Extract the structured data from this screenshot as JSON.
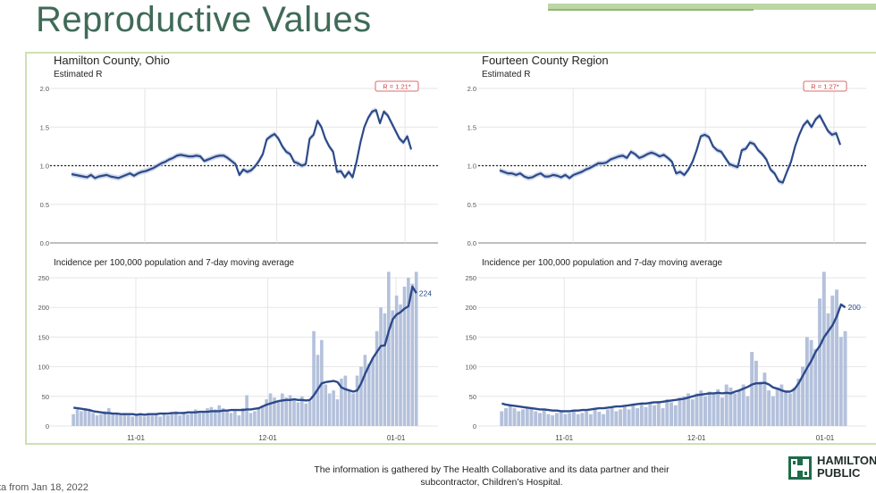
{
  "slide_title": "Reproductive Values",
  "footer_text": "The information is gathered by The Health Collaborative and its data partner and their subcontractor, Children’s Hospital.",
  "cut_note": "ta from Jan 18, 2022",
  "logo": {
    "line1": "HAMILTON",
    "line2": "PUBLIC"
  },
  "colors": {
    "line": "#2c4a8a",
    "band": "#c5cfe6",
    "bar": "#b4c1dc",
    "title": "#3f6b57",
    "grid": "#e6e6e6",
    "badge": "#d04040"
  },
  "chart_data": [
    {
      "type": "line",
      "title": "Hamilton County, Ohio",
      "ylabel": "Estimated R",
      "ylim": [
        0,
        2.0
      ],
      "yticks": [
        "0.0",
        "0.5",
        "1.0",
        "1.5",
        "2.0"
      ],
      "reference_line": 1.0,
      "badge": "R = 1.21*",
      "values": [
        0.89,
        0.88,
        0.87,
        0.86,
        0.85,
        0.88,
        0.84,
        0.86,
        0.87,
        0.88,
        0.86,
        0.85,
        0.84,
        0.86,
        0.88,
        0.9,
        0.87,
        0.9,
        0.92,
        0.93,
        0.95,
        0.97,
        1.0,
        1.03,
        1.05,
        1.08,
        1.1,
        1.13,
        1.14,
        1.13,
        1.12,
        1.12,
        1.13,
        1.12,
        1.06,
        1.08,
        1.1,
        1.12,
        1.13,
        1.13,
        1.1,
        1.06,
        1.02,
        0.88,
        0.95,
        0.92,
        0.94,
        0.99,
        1.06,
        1.15,
        1.34,
        1.38,
        1.41,
        1.35,
        1.25,
        1.18,
        1.15,
        1.05,
        1.03,
        1.0,
        1.02,
        1.35,
        1.4,
        1.58,
        1.5,
        1.35,
        1.25,
        1.18,
        0.92,
        0.93,
        0.85,
        0.92,
        0.85,
        1.05,
        1.3,
        1.5,
        1.62,
        1.7,
        1.72,
        1.55,
        1.7,
        1.65,
        1.55,
        1.45,
        1.35,
        1.3,
        1.38,
        1.21
      ]
    },
    {
      "type": "line",
      "title": "Fourteen County Region",
      "ylabel": "Estimated R",
      "ylim": [
        0,
        2.0
      ],
      "yticks": [
        "0.0",
        "0.5",
        "1.0",
        "1.5",
        "2.0"
      ],
      "reference_line": 1.0,
      "badge": "R = 1.27*",
      "values": [
        0.94,
        0.92,
        0.9,
        0.9,
        0.88,
        0.9,
        0.86,
        0.84,
        0.85,
        0.88,
        0.9,
        0.86,
        0.86,
        0.88,
        0.87,
        0.85,
        0.88,
        0.84,
        0.88,
        0.9,
        0.92,
        0.95,
        0.97,
        1.0,
        1.03,
        1.03,
        1.04,
        1.08,
        1.1,
        1.12,
        1.13,
        1.1,
        1.18,
        1.15,
        1.1,
        1.12,
        1.15,
        1.17,
        1.15,
        1.12,
        1.14,
        1.1,
        1.05,
        0.9,
        0.92,
        0.88,
        0.95,
        1.05,
        1.2,
        1.38,
        1.4,
        1.37,
        1.25,
        1.2,
        1.18,
        1.1,
        1.02,
        1.0,
        0.98,
        1.2,
        1.22,
        1.3,
        1.28,
        1.2,
        1.15,
        1.08,
        0.95,
        0.9,
        0.8,
        0.78,
        0.92,
        1.05,
        1.25,
        1.4,
        1.52,
        1.58,
        1.5,
        1.6,
        1.65,
        1.55,
        1.45,
        1.4,
        1.42,
        1.27
      ]
    },
    {
      "type": "bar",
      "title": "Incidence per 100,000 population and 7-day moving average",
      "ylim": [
        0,
        250
      ],
      "yticks": [
        "0",
        "50",
        "100",
        "150",
        "200",
        "250"
      ],
      "xticks": [
        {
          "label": "11-01",
          "pos": 0.2
        },
        {
          "label": "12-01",
          "pos": 0.56
        },
        {
          "label": "01-01",
          "pos": 0.91
        }
      ],
      "end_label": "224",
      "values": [
        20,
        28,
        25,
        30,
        28,
        22,
        18,
        20,
        25,
        30,
        22,
        20,
        18,
        22,
        18,
        16,
        20,
        18,
        16,
        20,
        18,
        22,
        16,
        20,
        18,
        22,
        25,
        18,
        24,
        20,
        22,
        28,
        22,
        24,
        30,
        32,
        28,
        35,
        30,
        26,
        22,
        25,
        18,
        30,
        52,
        22,
        25,
        30,
        35,
        45,
        55,
        48,
        42,
        55,
        48,
        52,
        45,
        40,
        50,
        38,
        42,
        160,
        120,
        145,
        70,
        55,
        60,
        45,
        80,
        85,
        60,
        55,
        85,
        100,
        120,
        105,
        115,
        160,
        200,
        190,
        260,
        195,
        220,
        205,
        235,
        250,
        240,
        260
      ],
      "moving_average": [
        31,
        30,
        29,
        28,
        27,
        25,
        24,
        23,
        22,
        22,
        21,
        21,
        20,
        20,
        20,
        20,
        19,
        20,
        19,
        20,
        20,
        20,
        21,
        21,
        21,
        22,
        22,
        22,
        22,
        23,
        23,
        23,
        24,
        24,
        24,
        25,
        25,
        25,
        26,
        26,
        27,
        27,
        27,
        27,
        28,
        28,
        29,
        30,
        33,
        36,
        38,
        40,
        42,
        43,
        44,
        44,
        45,
        44,
        44,
        43,
        44,
        52,
        62,
        72,
        74,
        75,
        76,
        74,
        65,
        62,
        60,
        58,
        60,
        72,
        88,
        102,
        115,
        125,
        135,
        136,
        160,
        180,
        188,
        192,
        198,
        202,
        235,
        224
      ]
    },
    {
      "type": "bar",
      "title": "Incidence per 100,000 population and 7-day moving average",
      "ylim": [
        0,
        250
      ],
      "yticks": [
        "0",
        "50",
        "100",
        "150",
        "200",
        "250"
      ],
      "xticks": [
        {
          "label": "11-01",
          "pos": 0.2
        },
        {
          "label": "12-01",
          "pos": 0.56
        },
        {
          "label": "01-01",
          "pos": 0.91
        }
      ],
      "end_label": "200",
      "values": [
        25,
        30,
        35,
        30,
        25,
        28,
        32,
        30,
        25,
        22,
        28,
        20,
        18,
        22,
        24,
        20,
        22,
        25,
        20,
        22,
        25,
        20,
        28,
        24,
        20,
        28,
        30,
        25,
        28,
        32,
        28,
        35,
        30,
        38,
        32,
        40,
        35,
        42,
        30,
        45,
        40,
        35,
        48,
        50,
        55,
        45,
        55,
        60,
        50,
        58,
        55,
        62,
        48,
        70,
        65,
        55,
        60,
        70,
        50,
        125,
        110,
        75,
        90,
        60,
        50,
        65,
        70,
        60,
        55,
        65,
        80,
        100,
        150,
        145,
        130,
        215,
        260,
        190,
        220,
        230,
        150,
        160
      ],
      "moving_average": [
        38,
        36,
        35,
        34,
        33,
        32,
        31,
        30,
        29,
        28,
        28,
        27,
        26,
        26,
        25,
        25,
        25,
        26,
        26,
        27,
        27,
        28,
        29,
        30,
        30,
        31,
        32,
        33,
        33,
        34,
        35,
        36,
        37,
        38,
        38,
        39,
        40,
        40,
        41,
        42,
        43,
        44,
        45,
        46,
        48,
        50,
        52,
        53,
        54,
        55,
        55,
        56,
        55,
        56,
        55,
        58,
        60,
        63,
        66,
        70,
        72,
        72,
        73,
        70,
        65,
        63,
        60,
        58,
        58,
        62,
        72,
        85,
        98,
        110,
        125,
        135,
        150,
        160,
        170,
        185,
        205,
        200
      ]
    }
  ]
}
